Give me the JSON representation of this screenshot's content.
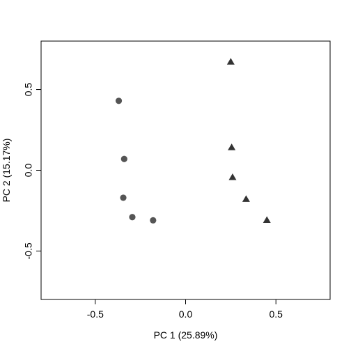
{
  "chart_data": {
    "type": "scatter",
    "xlabel": "PC 1 (25.89%)",
    "ylabel": "PC 2 (15.17%)",
    "xlim": [
      -0.8,
      0.8
    ],
    "ylim": [
      -0.8,
      0.8
    ],
    "xticks": [
      -0.5,
      0.0,
      0.5
    ],
    "yticks": [
      -0.5,
      0.0,
      0.5
    ],
    "xtick_labels": [
      "-0.5",
      "0.0",
      "0.5"
    ],
    "ytick_labels": [
      "-0.5",
      "0.0",
      "0.5"
    ],
    "grid": false,
    "series": [
      {
        "marker": "circle",
        "color": "#555555",
        "points": [
          {
            "x": -0.37,
            "y": 0.43
          },
          {
            "x": -0.34,
            "y": 0.07
          },
          {
            "x": -0.345,
            "y": -0.17
          },
          {
            "x": -0.295,
            "y": -0.29
          },
          {
            "x": -0.18,
            "y": -0.31
          }
        ]
      },
      {
        "marker": "triangle",
        "color": "#333333",
        "points": [
          {
            "x": 0.25,
            "y": 0.67
          },
          {
            "x": 0.255,
            "y": 0.14
          },
          {
            "x": 0.26,
            "y": -0.045
          },
          {
            "x": 0.335,
            "y": -0.18
          },
          {
            "x": 0.45,
            "y": -0.31
          }
        ]
      }
    ]
  }
}
